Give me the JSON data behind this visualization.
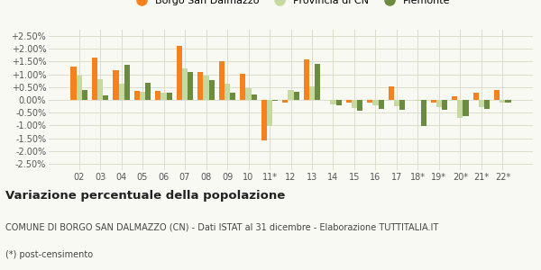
{
  "years": [
    "02",
    "03",
    "04",
    "05",
    "06",
    "07",
    "08",
    "09",
    "10",
    "11*",
    "12",
    "13",
    "14",
    "15",
    "16",
    "17",
    "18*",
    "19*",
    "20*",
    "21*",
    "22*"
  ],
  "borgo": [
    1.3,
    1.65,
    1.15,
    0.35,
    0.35,
    2.1,
    1.1,
    1.5,
    1.02,
    -1.6,
    -0.12,
    1.58,
    0.0,
    -0.12,
    -0.12,
    0.52,
    0.0,
    -0.12,
    0.15,
    0.28,
    0.38
  ],
  "provincia": [
    0.95,
    0.8,
    0.65,
    0.3,
    0.28,
    1.25,
    0.95,
    0.62,
    0.45,
    -1.02,
    0.4,
    0.52,
    -0.18,
    -0.3,
    -0.2,
    -0.25,
    -0.05,
    -0.28,
    -0.7,
    -0.28,
    -0.1
  ],
  "piemonte": [
    0.4,
    0.18,
    1.38,
    0.68,
    0.28,
    1.08,
    0.78,
    0.28,
    0.22,
    -0.05,
    0.3,
    1.42,
    -0.2,
    -0.42,
    -0.35,
    -0.38,
    -1.02,
    -0.4,
    -0.65,
    -0.35,
    -0.12
  ],
  "borgo_color": "#f5821e",
  "provincia_color": "#c5d9a0",
  "piemonte_color": "#6b8c3e",
  "bg_color": "#f9f9f4",
  "grid_color": "#ddddcc",
  "title": "Variazione percentuale della popolazione",
  "subtitle": "COMUNE DI BORGO SAN DALMAZZO (CN) - Dati ISTAT al 31 dicembre - Elaborazione TUTTITALIA.IT",
  "footnote": "(*) post-censimento",
  "ylim": [
    -2.75,
    2.75
  ],
  "yticks": [
    -2.5,
    -2.0,
    -1.5,
    -1.0,
    -0.5,
    0.0,
    0.5,
    1.0,
    1.5,
    2.0,
    2.5
  ],
  "title_fontsize": 9.5,
  "subtitle_fontsize": 7.0,
  "footnote_fontsize": 7.0,
  "legend_fontsize": 8,
  "tick_fontsize": 7
}
